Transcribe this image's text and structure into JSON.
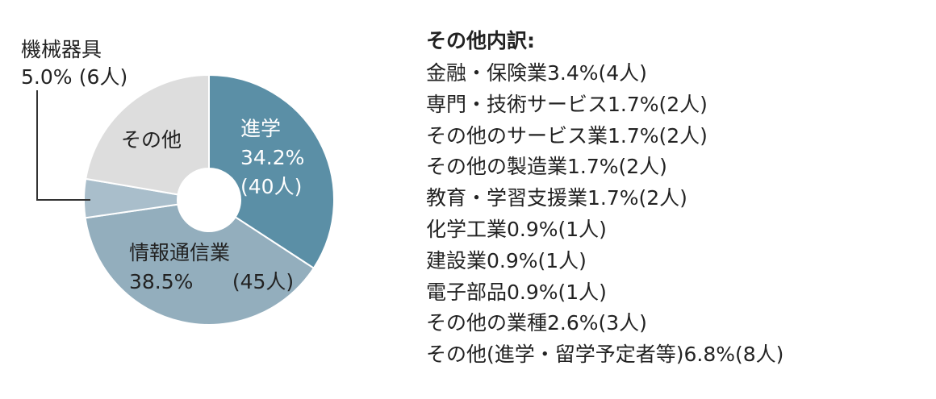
{
  "chart_data": {
    "type": "pie",
    "slices": [
      {
        "label": "進学",
        "pct_text": "34.2%",
        "count_text": "(40人)",
        "value": 34.2,
        "color": "#5b8fa6"
      },
      {
        "label": "情報通信業",
        "pct_text": "38.5%",
        "count_text": "(45人)",
        "value": 38.5,
        "color": "#93aebd"
      },
      {
        "label": "機械器具",
        "pct_text": "5.0%",
        "count_text": "(6人)",
        "value": 5.0,
        "color": "#a9becb"
      },
      {
        "label": "その他",
        "pct_text": "",
        "count_text": "",
        "value": 22.3,
        "color": "#dddddd"
      }
    ],
    "slice_text_colors": [
      "#ffffff",
      "#222222",
      "#222222",
      "#222222"
    ],
    "leader_line_color": "#333333",
    "legend": "none"
  },
  "breakdown": {
    "title": "その他内訳:",
    "items": [
      "金融・保険業3.4%(4人)",
      "専門・技術サービス1.7%(2人)",
      "その他のサービス業1.7%(2人)",
      "その他の製造業1.7%(2人)",
      "教育・学習支援業1.7%(2人)",
      "化学工業0.9%(1人)",
      "建設業0.9%(1人)",
      "電子部品0.9%(1人)",
      "その他の業種2.6%(3人)",
      "その他(進学・留学予定者等)6.8%(8人)"
    ]
  }
}
